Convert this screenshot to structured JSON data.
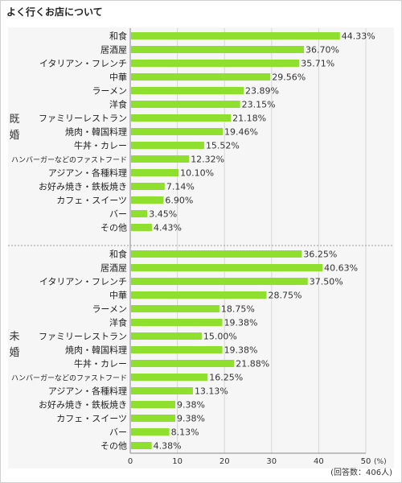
{
  "title": "よく行くお店について",
  "note": "(回答数：406人)",
  "chart_data": {
    "type": "bar",
    "orientation": "horizontal",
    "title": "よく行くお店について",
    "xlim": [
      0,
      50
    ],
    "x_ticks": [
      0,
      10,
      20,
      30,
      40,
      50
    ],
    "x_unit": "(%)",
    "bar_color": "#8fe02e",
    "groups": [
      {
        "name": "既婚",
        "categories": [
          "和食",
          "居酒屋",
          "イタリアン・フレンチ",
          "中華",
          "ラーメン",
          "洋食",
          "ファミリーレストラン",
          "焼肉・韓国料理",
          "牛丼・カレー",
          "ハンバーガーなどのファストフード",
          "アジアン・各種料理",
          "お好み焼き・鉄板焼き",
          "カフェ・スイーツ",
          "バー",
          "その他"
        ],
        "values": [
          44.33,
          36.7,
          35.71,
          29.56,
          23.89,
          23.15,
          21.18,
          19.46,
          15.52,
          12.32,
          10.1,
          7.14,
          6.9,
          3.45,
          4.43
        ],
        "labels": [
          "44.33%",
          "36.70%",
          "35.71%",
          "29.56%",
          "23.89%",
          "23.15%",
          "21.18%",
          "19.46%",
          "15.52%",
          "12.32%",
          "10.10%",
          "7.14%",
          "6.90%",
          "3.45%",
          "4.43%"
        ]
      },
      {
        "name": "未婚",
        "categories": [
          "和食",
          "居酒屋",
          "イタリアン・フレンチ",
          "中華",
          "ラーメン",
          "洋食",
          "ファミリーレストラン",
          "焼肉・韓国料理",
          "牛丼・カレー",
          "ハンバーガーなどのファストフード",
          "アジアン・各種料理",
          "お好み焼き・鉄板焼き",
          "カフェ・スイーツ",
          "バー",
          "その他"
        ],
        "values": [
          36.25,
          40.63,
          37.5,
          28.75,
          18.75,
          19.38,
          15.0,
          19.38,
          21.88,
          16.25,
          13.13,
          9.38,
          9.38,
          8.13,
          4.38
        ],
        "labels": [
          "36.25%",
          "40.63%",
          "37.50%",
          "28.75%",
          "18.75%",
          "19.38%",
          "15.00%",
          "19.38%",
          "21.88%",
          "16.25%",
          "13.13%",
          "9.38%",
          "9.38%",
          "8.13%",
          "4.38%"
        ]
      }
    ]
  }
}
